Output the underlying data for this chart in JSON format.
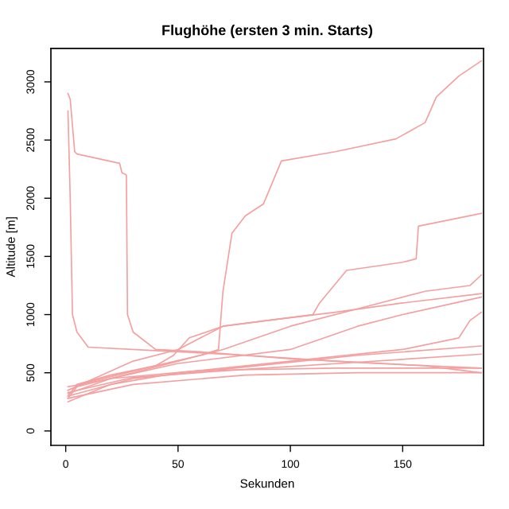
{
  "chart_data": {
    "type": "line",
    "title": "Flughöhe (ersten 3 min. Starts)",
    "xlabel": "Sekunden",
    "ylabel": "Altitude [m]",
    "xlim": [
      -6.6,
      186
    ],
    "ylim": [
      -124,
      3288
    ],
    "xticks": [
      0,
      50,
      100,
      150
    ],
    "yticks": [
      0,
      500,
      1000,
      1500,
      2000,
      2500,
      3000
    ],
    "grid": false,
    "legend": false,
    "marker": "none",
    "line_style": "solid",
    "series": [
      {
        "color": "#f4a0a0",
        "x": [
          1,
          2,
          4,
          5,
          24,
          25,
          27,
          27.5,
          30,
          40,
          60,
          100,
          150,
          185
        ],
        "values": [
          2900,
          2850,
          2400,
          2380,
          2300,
          2220,
          2200,
          1000,
          850,
          700,
          680,
          620,
          570,
          540
        ]
      },
      {
        "color": "#f4a0a0",
        "x": [
          1,
          2,
          3,
          5,
          10,
          40,
          80,
          120,
          160,
          185
        ],
        "values": [
          2750,
          2000,
          1000,
          850,
          720,
          690,
          650,
          600,
          560,
          500
        ]
      },
      {
        "color": "#f4a0a0",
        "x": [
          1,
          5,
          20,
          40,
          60,
          68,
          70,
          74,
          80,
          88,
          96,
          120,
          147,
          160,
          165,
          175,
          185
        ],
        "values": [
          300,
          400,
          480,
          560,
          650,
          700,
          1200,
          1700,
          1850,
          1950,
          2320,
          2400,
          2510,
          2650,
          2870,
          3050,
          3180
        ]
      },
      {
        "color": "#f4a0a0",
        "x": [
          1,
          30,
          50,
          70,
          90,
          110,
          113,
          125,
          150,
          156,
          157,
          185
        ],
        "values": [
          350,
          600,
          700,
          900,
          950,
          1000,
          1100,
          1380,
          1450,
          1480,
          1760,
          1870
        ]
      },
      {
        "color": "#f4a0a0",
        "x": [
          1,
          5,
          30,
          50,
          70,
          100,
          130,
          160,
          180,
          185
        ],
        "values": [
          280,
          380,
          500,
          600,
          700,
          900,
          1050,
          1200,
          1250,
          1340
        ]
      },
      {
        "color": "#f4a0a0",
        "x": [
          1,
          10,
          40,
          48,
          55,
          70,
          90,
          120,
          150,
          185
        ],
        "values": [
          350,
          420,
          560,
          650,
          800,
          900,
          950,
          1020,
          1100,
          1180
        ]
      },
      {
        "color": "#f4a0a0",
        "x": [
          1,
          20,
          50,
          100,
          130,
          150,
          185
        ],
        "values": [
          320,
          450,
          580,
          700,
          900,
          1000,
          1150
        ]
      },
      {
        "color": "#f4a0a0",
        "x": [
          1,
          20,
          50,
          100,
          150,
          175,
          180,
          185
        ],
        "values": [
          250,
          400,
          500,
          600,
          700,
          800,
          950,
          1020
        ]
      },
      {
        "color": "#f4a0a0",
        "x": [
          1,
          30,
          80,
          130,
          185
        ],
        "values": [
          300,
          450,
          550,
          650,
          730
        ]
      },
      {
        "color": "#f4a0a0",
        "x": [
          1,
          30,
          80,
          130,
          185
        ],
        "values": [
          330,
          460,
          530,
          590,
          660
        ]
      },
      {
        "color": "#f4a0a0",
        "x": [
          1,
          20,
          60,
          120,
          185
        ],
        "values": [
          380,
          450,
          520,
          540,
          540
        ]
      },
      {
        "color": "#f4a0a0",
        "x": [
          1,
          30,
          80,
          130,
          185
        ],
        "values": [
          280,
          400,
          480,
          500,
          500
        ]
      }
    ]
  }
}
